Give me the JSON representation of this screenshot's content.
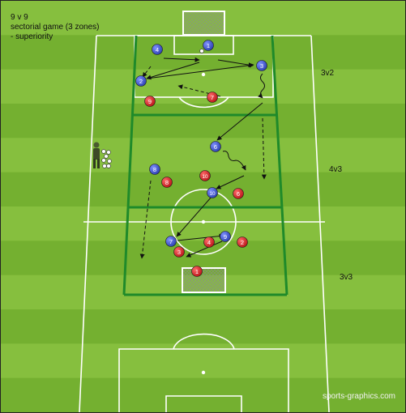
{
  "caption": {
    "title": "9 v 9",
    "line2": "sectorial game (3 zones)",
    "line3": "- superiority"
  },
  "zones": [
    "3v2",
    "4v3",
    "3v3"
  ],
  "watermark": "sports-graphics.com",
  "colors": {
    "grass_light": "#86bf3e",
    "grass_dark": "#74b030",
    "zone_line": "#1f8a2a",
    "blue_player": "#3f55c8",
    "red_player": "#d3242a"
  },
  "blue_players": [
    "1",
    "4",
    "2",
    "3",
    "6",
    "8",
    "10",
    "7",
    "9"
  ],
  "red_players": [
    "9",
    "7",
    "8",
    "10",
    "6",
    "3",
    "4",
    "2",
    "1"
  ]
}
